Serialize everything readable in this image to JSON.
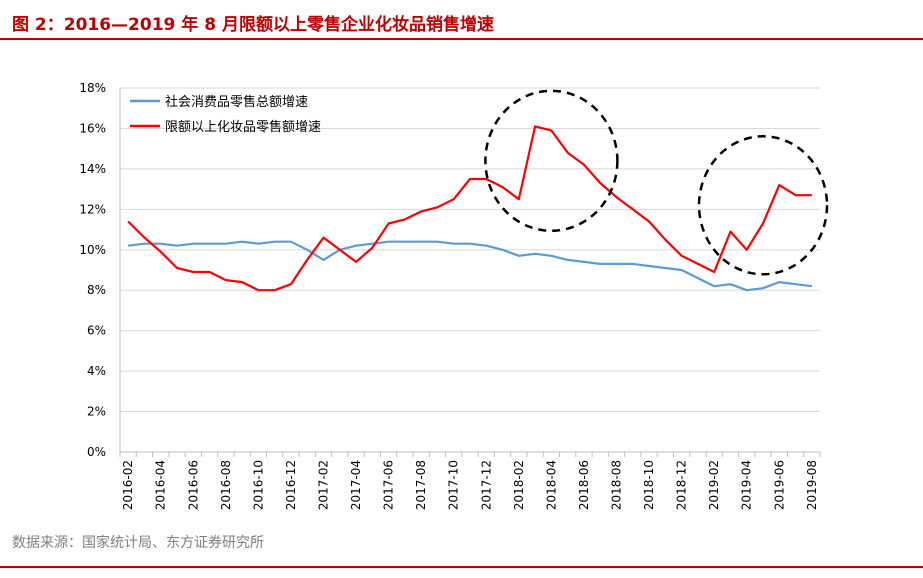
{
  "header": {
    "title": "图 2：2016—2019 年 8 月限额以上零售企业化妆品销售增速"
  },
  "footer": {
    "source": "数据来源：国家统计局、东方证券研究所"
  },
  "colors": {
    "accent": "#c00000",
    "retail": "#5b9bd5",
    "cosmetics": "#ff0000"
  },
  "chart_data": {
    "type": "line",
    "ylim": [
      0,
      18
    ],
    "yticks": [
      "0%",
      "2%",
      "4%",
      "6%",
      "8%",
      "10%",
      "12%",
      "14%",
      "16%",
      "18%"
    ],
    "grid": true,
    "legend_position": "top-left",
    "x": [
      "2016-02",
      "2016-03",
      "2016-04",
      "2016-05",
      "2016-06",
      "2016-07",
      "2016-08",
      "2016-09",
      "2016-10",
      "2016-11",
      "2016-12",
      "2017-01",
      "2017-02",
      "2017-03",
      "2017-04",
      "2017-05",
      "2017-06",
      "2017-07",
      "2017-08",
      "2017-09",
      "2017-10",
      "2017-11",
      "2017-12",
      "2018-01",
      "2018-02",
      "2018-03",
      "2018-04",
      "2018-05",
      "2018-06",
      "2018-07",
      "2018-08",
      "2018-09",
      "2018-10",
      "2018-11",
      "2018-12",
      "2019-01",
      "2019-02",
      "2019-03",
      "2019-04",
      "2019-05",
      "2019-06",
      "2019-07",
      "2019-08"
    ],
    "xtick_labels": [
      "2016-02",
      "2016-04",
      "2016-06",
      "2016-08",
      "2016-10",
      "2016-12",
      "2017-02",
      "2017-04",
      "2017-06",
      "2017-08",
      "2017-10",
      "2017-12",
      "2018-02",
      "2018-04",
      "2018-06",
      "2018-08",
      "2018-10",
      "2018-12",
      "2019-02",
      "2019-04",
      "2019-06",
      "2019-08"
    ],
    "series": [
      {
        "name": "社会消费品零售总额增速",
        "color": "#5b9bd5",
        "values": [
          10.2,
          10.3,
          10.3,
          10.2,
          10.3,
          10.3,
          10.3,
          10.4,
          10.3,
          10.4,
          10.4,
          10.0,
          9.5,
          10.0,
          10.2,
          10.3,
          10.4,
          10.4,
          10.4,
          10.4,
          10.3,
          10.3,
          10.2,
          10.0,
          9.7,
          9.8,
          9.7,
          9.5,
          9.4,
          9.3,
          9.3,
          9.3,
          9.2,
          9.1,
          9.0,
          8.6,
          8.2,
          8.3,
          8.0,
          8.1,
          8.4,
          8.3,
          8.2
        ]
      },
      {
        "name": "限额以上化妆品零售额增速",
        "color": "#ff0000",
        "values": [
          11.4,
          10.6,
          9.9,
          9.1,
          8.9,
          8.9,
          8.5,
          8.4,
          8.0,
          8.0,
          8.3,
          9.5,
          10.6,
          10.0,
          9.4,
          10.1,
          11.3,
          11.5,
          11.9,
          12.1,
          12.5,
          13.5,
          13.5,
          13.1,
          12.5,
          16.1,
          15.9,
          14.8,
          14.2,
          13.3,
          12.6,
          12.0,
          11.4,
          10.5,
          9.7,
          9.3,
          8.9,
          10.9,
          10.0,
          11.3,
          13.2,
          12.7,
          12.7
        ]
      }
    ],
    "highlights": [
      {
        "cx": "2018-04",
        "cy": 14.4
      },
      {
        "cx": "2019-05",
        "cy": 12.2
      }
    ]
  }
}
